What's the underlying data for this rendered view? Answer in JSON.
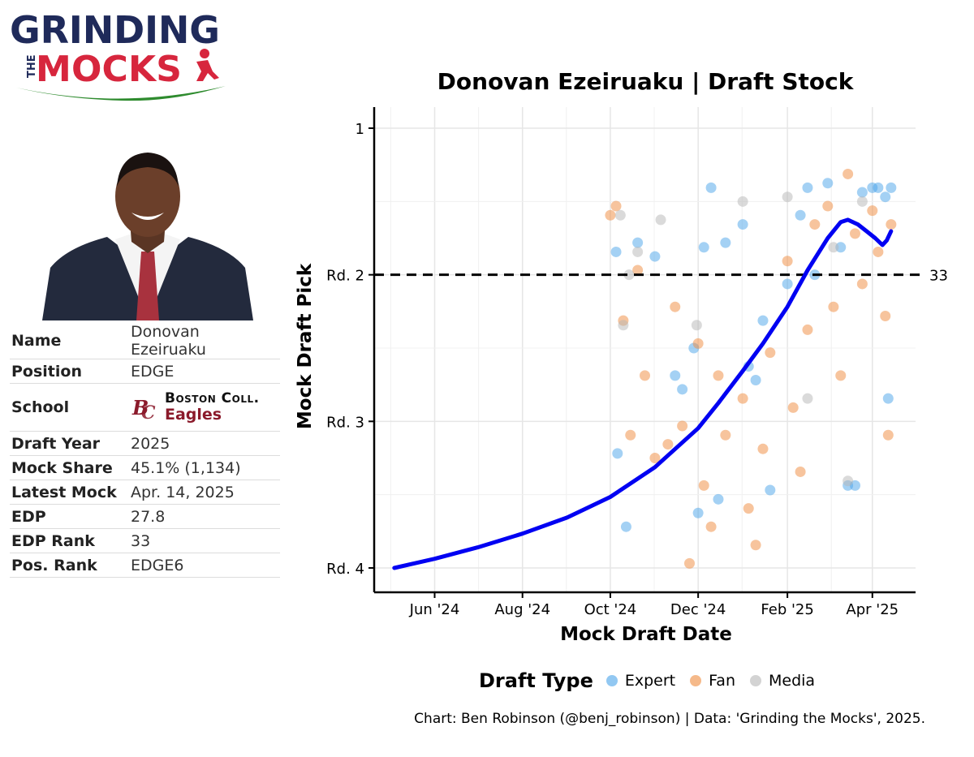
{
  "brand": {
    "line1": "GRINDING",
    "line2_small": "THE",
    "line2": "MOCKS",
    "color_navy": "#1f2a5a",
    "color_red": "#d7263d",
    "color_green": "#2e8b2e"
  },
  "player_photo": {
    "icon": "player-headshot"
  },
  "info_table": [
    {
      "label": "Name",
      "value": "Donovan Ezeiruaku"
    },
    {
      "label": "Position",
      "value": "EDGE"
    },
    {
      "label": "School",
      "value": ""
    },
    {
      "label": "Draft Year",
      "value": "2025"
    },
    {
      "label": "Mock Share",
      "value": "45.1% (1,134)"
    },
    {
      "label": "Latest Mock",
      "value": "Apr. 14, 2025"
    },
    {
      "label": "EDP",
      "value": "27.8"
    },
    {
      "label": "EDP Rank",
      "value": "33"
    },
    {
      "label": "Pos. Rank",
      "value": "EDGE6"
    }
  ],
  "school": {
    "name": "Boston Coll.",
    "mascot": "Eagles",
    "logo_icon": "bc-logo-icon",
    "color": "#8b1a2b"
  },
  "chart_data": {
    "type": "scatter",
    "title": "Donovan Ezeiruaku | Draft Stock",
    "xlabel": "Mock Draft Date",
    "ylabel": "Mock Draft Pick",
    "x_ticks": [
      "Jun '24",
      "Aug '24",
      "Oct '24",
      "Dec '24",
      "Feb '25",
      "Apr '25"
    ],
    "x_tick_dates": [
      "2024-06-01",
      "2024-08-01",
      "2024-10-01",
      "2024-12-01",
      "2025-02-01",
      "2025-04-01"
    ],
    "xlim": [
      "2024-04-20",
      "2025-05-01"
    ],
    "y_ticks": [
      {
        "pick": 1,
        "label": "1"
      },
      {
        "pick": 33,
        "label": "Rd. 2"
      },
      {
        "pick": 65,
        "label": "Rd. 3"
      },
      {
        "pick": 97,
        "label": "Rd. 4"
      }
    ],
    "ylim": [
      1,
      97
    ],
    "y_reversed": true,
    "reference_line": {
      "pick": 33,
      "label": "33"
    },
    "grid": true,
    "legend": {
      "title": "Draft Type",
      "position": "bottom",
      "entries": [
        {
          "name": "Expert",
          "color": "#4aa3ea"
        },
        {
          "name": "Fan",
          "color": "#ef8a3c"
        },
        {
          "name": "Media",
          "color": "#b5b5b5"
        }
      ]
    },
    "trend": [
      {
        "x": "2024-05-04",
        "y": 97
      },
      {
        "x": "2024-06-01",
        "y": 95
      },
      {
        "x": "2024-07-01",
        "y": 92.5
      },
      {
        "x": "2024-08-01",
        "y": 89.5
      },
      {
        "x": "2024-09-01",
        "y": 86
      },
      {
        "x": "2024-10-01",
        "y": 81.5
      },
      {
        "x": "2024-11-01",
        "y": 75
      },
      {
        "x": "2024-12-01",
        "y": 66.5
      },
      {
        "x": "2024-12-15",
        "y": 61
      },
      {
        "x": "2025-01-01",
        "y": 54
      },
      {
        "x": "2025-01-15",
        "y": 48
      },
      {
        "x": "2025-02-01",
        "y": 40
      },
      {
        "x": "2025-02-15",
        "y": 32
      },
      {
        "x": "2025-03-01",
        "y": 25
      },
      {
        "x": "2025-03-10",
        "y": 21.5
      },
      {
        "x": "2025-03-15",
        "y": 21
      },
      {
        "x": "2025-03-22",
        "y": 22
      },
      {
        "x": "2025-03-28",
        "y": 23.5
      },
      {
        "x": "2025-04-03",
        "y": 25
      },
      {
        "x": "2025-04-08",
        "y": 26.5
      },
      {
        "x": "2025-04-11",
        "y": 25.5
      },
      {
        "x": "2025-04-14",
        "y": 23.5
      }
    ],
    "series": [
      {
        "name": "Expert",
        "color": "#4aa3ea",
        "points": [
          {
            "x": "2024-10-05",
            "y": 28
          },
          {
            "x": "2024-10-06",
            "y": 72
          },
          {
            "x": "2024-10-12",
            "y": 88
          },
          {
            "x": "2024-10-20",
            "y": 26
          },
          {
            "x": "2024-11-01",
            "y": 29
          },
          {
            "x": "2024-11-15",
            "y": 55
          },
          {
            "x": "2024-11-20",
            "y": 58
          },
          {
            "x": "2024-11-28",
            "y": 49
          },
          {
            "x": "2024-12-01",
            "y": 85
          },
          {
            "x": "2024-12-05",
            "y": 27
          },
          {
            "x": "2024-12-10",
            "y": 14
          },
          {
            "x": "2024-12-15",
            "y": 82
          },
          {
            "x": "2024-12-20",
            "y": 26
          },
          {
            "x": "2025-01-01",
            "y": 22
          },
          {
            "x": "2025-01-05",
            "y": 53
          },
          {
            "x": "2025-01-10",
            "y": 56
          },
          {
            "x": "2025-01-15",
            "y": 43
          },
          {
            "x": "2025-01-20",
            "y": 80
          },
          {
            "x": "2025-02-01",
            "y": 35
          },
          {
            "x": "2025-02-10",
            "y": 20
          },
          {
            "x": "2025-02-15",
            "y": 14
          },
          {
            "x": "2025-02-20",
            "y": 33
          },
          {
            "x": "2025-03-01",
            "y": 13
          },
          {
            "x": "2025-03-10",
            "y": 27
          },
          {
            "x": "2025-03-15",
            "y": 79
          },
          {
            "x": "2025-03-20",
            "y": 79
          },
          {
            "x": "2025-03-25",
            "y": 15
          },
          {
            "x": "2025-04-01",
            "y": 14
          },
          {
            "x": "2025-04-05",
            "y": 14
          },
          {
            "x": "2025-04-10",
            "y": 16
          },
          {
            "x": "2025-04-12",
            "y": 60
          },
          {
            "x": "2025-04-14",
            "y": 14
          }
        ]
      },
      {
        "name": "Fan",
        "color": "#ef8a3c",
        "points": [
          {
            "x": "2024-10-01",
            "y": 20
          },
          {
            "x": "2024-10-05",
            "y": 18
          },
          {
            "x": "2024-10-10",
            "y": 43
          },
          {
            "x": "2024-10-15",
            "y": 68
          },
          {
            "x": "2024-10-20",
            "y": 32
          },
          {
            "x": "2024-10-25",
            "y": 55
          },
          {
            "x": "2024-11-01",
            "y": 73
          },
          {
            "x": "2024-11-10",
            "y": 70
          },
          {
            "x": "2024-11-15",
            "y": 40
          },
          {
            "x": "2024-11-20",
            "y": 66
          },
          {
            "x": "2024-11-25",
            "y": 96
          },
          {
            "x": "2024-12-01",
            "y": 48
          },
          {
            "x": "2024-12-05",
            "y": 79
          },
          {
            "x": "2024-12-10",
            "y": 88
          },
          {
            "x": "2024-12-15",
            "y": 55
          },
          {
            "x": "2024-12-20",
            "y": 68
          },
          {
            "x": "2025-01-01",
            "y": 60
          },
          {
            "x": "2025-01-05",
            "y": 84
          },
          {
            "x": "2025-01-10",
            "y": 92
          },
          {
            "x": "2025-01-15",
            "y": 71
          },
          {
            "x": "2025-01-20",
            "y": 50
          },
          {
            "x": "2025-02-01",
            "y": 30
          },
          {
            "x": "2025-02-05",
            "y": 62
          },
          {
            "x": "2025-02-10",
            "y": 76
          },
          {
            "x": "2025-02-15",
            "y": 45
          },
          {
            "x": "2025-02-20",
            "y": 22
          },
          {
            "x": "2025-03-01",
            "y": 18
          },
          {
            "x": "2025-03-05",
            "y": 40
          },
          {
            "x": "2025-03-10",
            "y": 55
          },
          {
            "x": "2025-03-15",
            "y": 11
          },
          {
            "x": "2025-03-20",
            "y": 24
          },
          {
            "x": "2025-03-25",
            "y": 35
          },
          {
            "x": "2025-04-01",
            "y": 19
          },
          {
            "x": "2025-04-05",
            "y": 28
          },
          {
            "x": "2025-04-10",
            "y": 42
          },
          {
            "x": "2025-04-12",
            "y": 68
          },
          {
            "x": "2025-04-14",
            "y": 22
          }
        ]
      },
      {
        "name": "Media",
        "color": "#b5b5b5",
        "points": [
          {
            "x": "2024-10-08",
            "y": 20
          },
          {
            "x": "2024-10-10",
            "y": 44
          },
          {
            "x": "2024-10-14",
            "y": 33
          },
          {
            "x": "2024-10-20",
            "y": 28
          },
          {
            "x": "2024-11-05",
            "y": 21
          },
          {
            "x": "2024-11-30",
            "y": 44
          },
          {
            "x": "2025-01-01",
            "y": 17
          },
          {
            "x": "2025-02-01",
            "y": 16
          },
          {
            "x": "2025-02-15",
            "y": 60
          },
          {
            "x": "2025-03-05",
            "y": 27
          },
          {
            "x": "2025-03-15",
            "y": 78
          },
          {
            "x": "2025-03-25",
            "y": 17
          }
        ]
      }
    ]
  },
  "caption": "Chart: Ben Robinson (@benj_robinson) | Data: 'Grinding the Mocks', 2025."
}
